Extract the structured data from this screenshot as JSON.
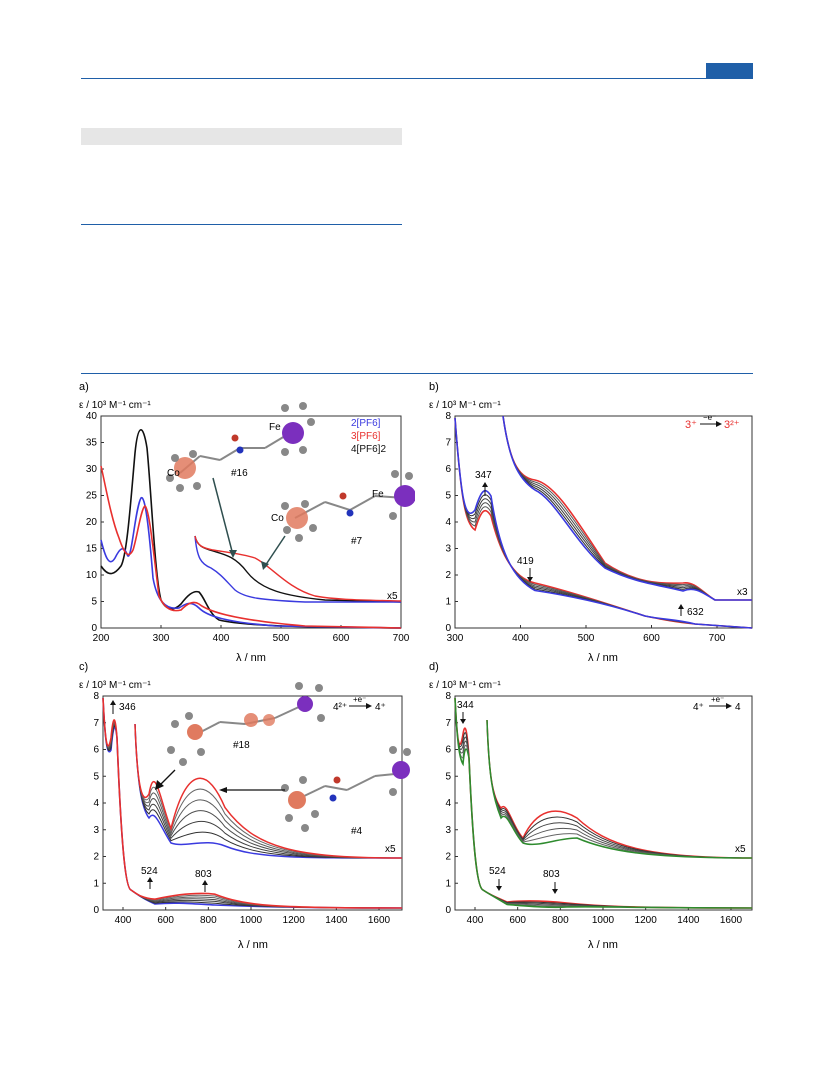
{
  "panels": {
    "a": {
      "letter": "a)",
      "ylabel": "ε / 10³ M⁻¹ cm⁻¹",
      "xlabel": "λ / nm",
      "xticks": [
        "200",
        "300",
        "400",
        "500",
        "600",
        "700"
      ],
      "yticks": [
        "0",
        "5",
        "10",
        "15",
        "20",
        "25",
        "30",
        "35",
        "40"
      ],
      "legend": [
        "2[PF6]",
        "3[PF6]",
        "4[PF6]2"
      ],
      "mult": "x5",
      "labels": [
        "#16",
        "#7",
        "Co",
        "Fe",
        "Co",
        "Fe"
      ]
    },
    "b": {
      "letter": "b)",
      "ylabel": "ε / 10³ M⁻¹ cm⁻¹",
      "xlabel": "λ / nm",
      "xticks": [
        "300",
        "400",
        "500",
        "600",
        "700"
      ],
      "yticks": [
        "0",
        "1",
        "2",
        "3",
        "4",
        "5",
        "6",
        "7",
        "8"
      ],
      "annot": [
        "347",
        "419",
        "632"
      ],
      "reaction_left": "3⁺",
      "reaction_top": "−e⁻",
      "reaction_right": "3²⁺",
      "mult": "x3"
    },
    "c": {
      "letter": "c)",
      "ylabel": "ε / 10³ M⁻¹ cm⁻¹",
      "xlabel": "λ / nm",
      "xticks": [
        "400",
        "600",
        "800",
        "1000",
        "1200",
        "1400",
        "1600"
      ],
      "yticks": [
        "0",
        "1",
        "2",
        "3",
        "4",
        "5",
        "6",
        "7",
        "8"
      ],
      "annot": [
        "346",
        "524",
        "803"
      ],
      "reaction_left": "4²⁺",
      "reaction_top": "+e⁻",
      "reaction_right": "4⁺",
      "labels": [
        "#18",
        "#4"
      ],
      "mult": "x5"
    },
    "d": {
      "letter": "d)",
      "ylabel": "ε / 10³ M⁻¹ cm⁻¹",
      "xlabel": "λ / nm",
      "xticks": [
        "400",
        "600",
        "800",
        "1000",
        "1200",
        "1400",
        "1600"
      ],
      "yticks": [
        "0",
        "1",
        "2",
        "3",
        "4",
        "5",
        "6",
        "7",
        "8"
      ],
      "annot": [
        "344",
        "524",
        "803"
      ],
      "reaction_left": "4⁺",
      "reaction_top": "+e⁻",
      "reaction_right": "4",
      "mult": "x5"
    }
  },
  "colors": {
    "blue": "#3a3adf",
    "red": "#e8302e",
    "black": "#111111",
    "green": "#2e8b2e",
    "grey": "#8a8a8a",
    "accent": "#1f5fa8"
  }
}
